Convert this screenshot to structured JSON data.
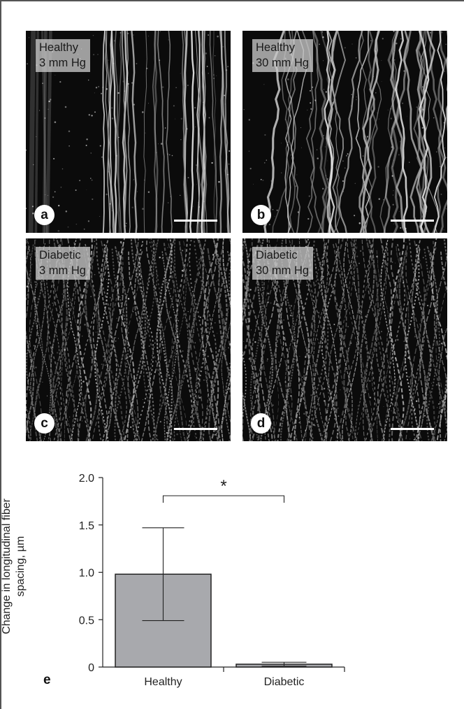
{
  "panels": [
    {
      "id": "a",
      "letter": "a",
      "line1": "Healthy",
      "line2": "3 mm Hg"
    },
    {
      "id": "b",
      "letter": "b",
      "line1": "Healthy",
      "line2": "30 mm Hg"
    },
    {
      "id": "c",
      "letter": "c",
      "line1": "Diabetic",
      "line2": "3 mm Hg"
    },
    {
      "id": "d",
      "letter": "d",
      "line1": "Diabetic",
      "line2": "30 mm Hg"
    }
  ],
  "chart_letter": "e",
  "chart_data": {
    "type": "bar",
    "categories": [
      "Healthy",
      "Diabetic"
    ],
    "values": [
      0.98,
      0.03
    ],
    "error_upper": [
      1.47,
      0.05
    ],
    "error_lower": [
      0.49,
      0.01
    ],
    "ylabel_line1": "Change in longitudinal fiber",
    "ylabel_line2": "spacing, µm",
    "ylim": [
      0,
      2.0
    ],
    "yticks": [
      "0",
      "0.5",
      "1.0",
      "1.5",
      "2.0"
    ],
    "significance": "*",
    "bar_color": "#a8a9ad",
    "grid": false
  }
}
